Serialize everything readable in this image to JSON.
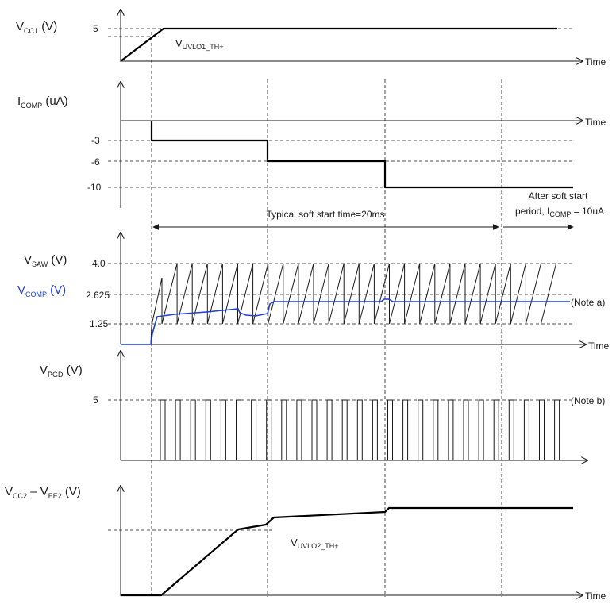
{
  "panels": {
    "vcc1": {
      "symbol": "V",
      "sub": "CC1",
      "unit": " (V)",
      "tick": "5",
      "threshold": {
        "symbol": "V",
        "sub": "UVLO1_TH+"
      },
      "axis_label": "Time"
    },
    "icomp": {
      "symbol": "I",
      "sub": "COMP",
      "unit": " (uA)",
      "ticks": [
        "-3",
        "-6",
        "-10"
      ],
      "axis_label": "Time"
    },
    "vsaw": {
      "symbol": "V",
      "sub": "SAW",
      "unit": " (V)",
      "comp_symbol": "V",
      "comp_sub": "COMP",
      "comp_unit": " (V)",
      "ticks": [
        "4.0",
        "2.625",
        "1.25"
      ],
      "note": "(Note a)",
      "axis_label": "Time"
    },
    "vpgd": {
      "symbol": "V",
      "sub": "PGD",
      "unit": " (V)",
      "tick": "5",
      "note": "(Note b)"
    },
    "vcc2": {
      "symbol1": "V",
      "sub1": "CC2",
      "minus": " – ",
      "symbol2": "V",
      "sub2": "EE2",
      "unit": " (V)",
      "threshold": {
        "symbol": "V",
        "sub": "UVLO2_TH+"
      },
      "axis_label": "Time"
    }
  },
  "annotations": {
    "soft_start": "Typical soft start time=20ms",
    "after_line1": "After soft start",
    "after_line2_prefix": "period, I",
    "after_line2_sub": "COMP",
    "after_line2_suffix": " = 10uA"
  },
  "colors": {
    "trace": "#000000",
    "comp_trace": "#1f3fd6",
    "comp_label": "#1f3fd6"
  }
}
